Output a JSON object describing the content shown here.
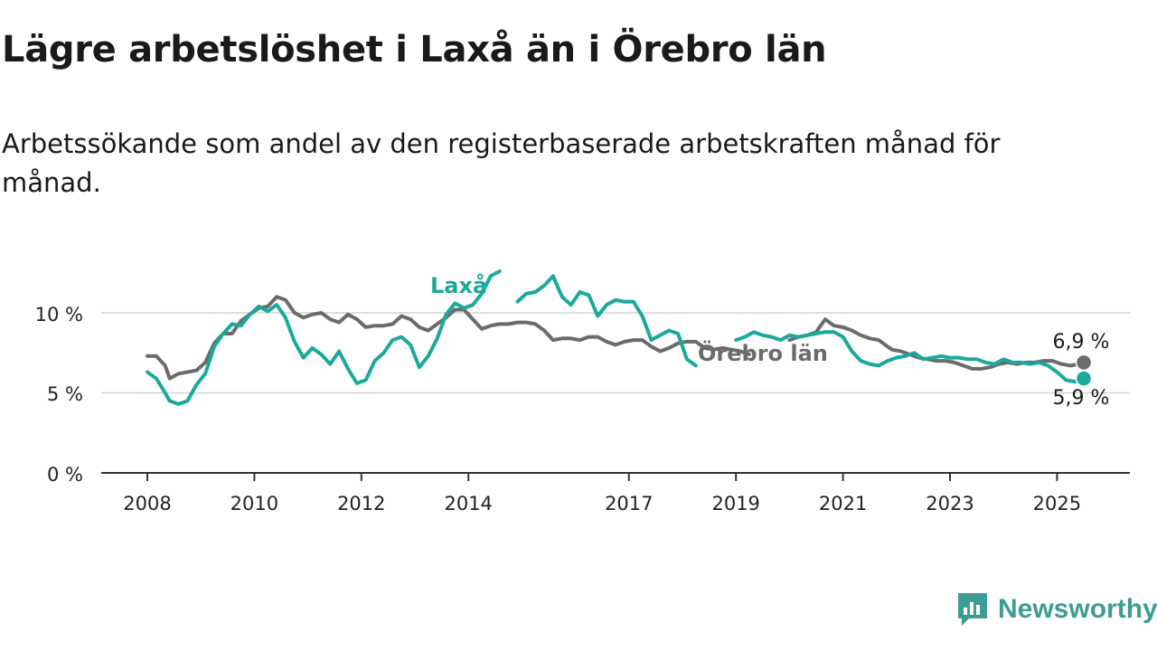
{
  "header": {
    "title": "Lägre arbetslöshet i Laxå än i Örebro län",
    "subtitle": "Arbetssökande som andel av den registerbaserade arbetskraften månad för månad."
  },
  "brand": {
    "name": "Newsworthy",
    "icon": "newsworthy-logo-icon",
    "color": "#3f9c94"
  },
  "chart_data": {
    "type": "line",
    "title": "Lägre arbetslöshet i Laxå än i Örebro län",
    "subtitle": "Arbetssökande som andel av den registerbaserade arbetskraften månad för månad.",
    "xlabel": "",
    "ylabel": "",
    "x_ticks": [
      "2008",
      "2010",
      "2012",
      "2014",
      "2017",
      "2019",
      "2021",
      "2023",
      "2025"
    ],
    "y_ticks": [
      "0 %",
      "5 %",
      "10 %"
    ],
    "ylim": [
      0,
      13
    ],
    "grid": true,
    "legend": "direct labels",
    "series": [
      {
        "name": "Örebro län",
        "color": "#6b6b6e",
        "end_label": "6,9 %",
        "points": [
          [
            "2008-01",
            7.3
          ],
          [
            "2008-03",
            7.3
          ],
          [
            "2008-05",
            6.7
          ],
          [
            "2008-06",
            5.9
          ],
          [
            "2008-08",
            6.2
          ],
          [
            "2008-10",
            6.3
          ],
          [
            "2008-12",
            6.4
          ],
          [
            "2009-02",
            6.9
          ],
          [
            "2009-04",
            8.1
          ],
          [
            "2009-06",
            8.7
          ],
          [
            "2009-08",
            8.7
          ],
          [
            "2009-10",
            9.5
          ],
          [
            "2009-12",
            9.9
          ],
          [
            "2010-02",
            10.3
          ],
          [
            "2010-04",
            10.4
          ],
          [
            "2010-06",
            11.0
          ],
          [
            "2010-08",
            10.8
          ],
          [
            "2010-10",
            10.0
          ],
          [
            "2010-12",
            9.7
          ],
          [
            "2011-02",
            9.9
          ],
          [
            "2011-04",
            10.0
          ],
          [
            "2011-06",
            9.6
          ],
          [
            "2011-08",
            9.4
          ],
          [
            "2011-10",
            9.9
          ],
          [
            "2011-12",
            9.6
          ],
          [
            "2012-02",
            9.1
          ],
          [
            "2012-04",
            9.2
          ],
          [
            "2012-06",
            9.2
          ],
          [
            "2012-08",
            9.3
          ],
          [
            "2012-10",
            9.8
          ],
          [
            "2012-12",
            9.6
          ],
          [
            "2013-02",
            9.1
          ],
          [
            "2013-04",
            8.9
          ],
          [
            "2013-06",
            9.3
          ],
          [
            "2013-08",
            9.7
          ],
          [
            "2013-10",
            10.2
          ],
          [
            "2013-12",
            10.2
          ],
          [
            "2014-02",
            9.6
          ],
          [
            "2014-04",
            9.0
          ],
          [
            "2014-06",
            9.2
          ],
          [
            "2014-08",
            9.3
          ],
          [
            "2014-10",
            9.3
          ],
          [
            "2014-12",
            9.4
          ],
          [
            "2015-02",
            9.4
          ],
          [
            "2015-04",
            9.3
          ],
          [
            "2015-06",
            8.9
          ],
          [
            "2015-08",
            8.3
          ],
          [
            "2015-10",
            8.4
          ],
          [
            "2015-12",
            8.4
          ],
          [
            "2016-02",
            8.3
          ],
          [
            "2016-04",
            8.5
          ],
          [
            "2016-06",
            8.5
          ],
          [
            "2016-08",
            8.2
          ],
          [
            "2016-10",
            8.0
          ],
          [
            "2016-12",
            8.2
          ],
          [
            "2017-02",
            8.3
          ],
          [
            "2017-04",
            8.3
          ],
          [
            "2017-06",
            7.9
          ],
          [
            "2017-08",
            7.6
          ],
          [
            "2017-10",
            7.8
          ],
          [
            "2017-12",
            8.1
          ],
          [
            "2018-02",
            8.2
          ],
          [
            "2018-04",
            8.2
          ],
          [
            "2018-06",
            7.8
          ],
          [
            "2018-08",
            7.7
          ],
          [
            "2018-10",
            7.8
          ],
          [
            "2018-12",
            7.7
          ],
          [
            "2019-02",
            7.6
          ],
          [
            "2019-04",
            7.4
          ]
        ],
        "points_2": [
          [
            "2020-01",
            8.3
          ],
          [
            "2020-03",
            8.5
          ],
          [
            "2020-05",
            8.6
          ],
          [
            "2020-07",
            8.8
          ],
          [
            "2020-09",
            9.6
          ],
          [
            "2020-11",
            9.2
          ],
          [
            "2021-01",
            9.1
          ],
          [
            "2021-03",
            8.9
          ],
          [
            "2021-05",
            8.6
          ],
          [
            "2021-07",
            8.4
          ],
          [
            "2021-09",
            8.3
          ],
          [
            "2021-11",
            7.9
          ],
          [
            "2021-12",
            7.7
          ],
          [
            "2022-02",
            7.6
          ],
          [
            "2022-04",
            7.4
          ],
          [
            "2022-06",
            7.2
          ],
          [
            "2022-08",
            7.1
          ],
          [
            "2022-10",
            7.0
          ],
          [
            "2022-12",
            7.0
          ],
          [
            "2023-02",
            6.9
          ],
          [
            "2023-04",
            6.7
          ],
          [
            "2023-06",
            6.5
          ],
          [
            "2023-08",
            6.5
          ],
          [
            "2023-10",
            6.6
          ],
          [
            "2023-12",
            6.8
          ],
          [
            "2024-02",
            6.9
          ],
          [
            "2024-04",
            6.8
          ],
          [
            "2024-06",
            6.9
          ],
          [
            "2024-08",
            6.9
          ],
          [
            "2024-10",
            7.0
          ],
          [
            "2024-12",
            7.0
          ],
          [
            "2025-02",
            6.8
          ],
          [
            "2025-04",
            6.7
          ],
          [
            "2025-06",
            6.8
          ],
          [
            "2025-07",
            6.9
          ]
        ]
      },
      {
        "name": "Laxå",
        "color": "#1ba99c",
        "end_label": "5,9 %",
        "points": [
          [
            "2008-01",
            6.3
          ],
          [
            "2008-03",
            5.9
          ],
          [
            "2008-05",
            5.0
          ],
          [
            "2008-06",
            4.5
          ],
          [
            "2008-08",
            4.3
          ],
          [
            "2008-10",
            4.5
          ],
          [
            "2008-12",
            5.5
          ],
          [
            "2009-02",
            6.2
          ],
          [
            "2009-04",
            7.9
          ],
          [
            "2009-06",
            8.7
          ],
          [
            "2009-08",
            9.3
          ],
          [
            "2009-10",
            9.2
          ],
          [
            "2009-12",
            9.9
          ],
          [
            "2010-02",
            10.4
          ],
          [
            "2010-04",
            10.1
          ],
          [
            "2010-06",
            10.5
          ],
          [
            "2010-08",
            9.7
          ],
          [
            "2010-10",
            8.2
          ],
          [
            "2010-12",
            7.2
          ],
          [
            "2011-02",
            7.8
          ],
          [
            "2011-04",
            7.4
          ],
          [
            "2011-06",
            6.8
          ],
          [
            "2011-08",
            7.6
          ],
          [
            "2011-10",
            6.5
          ],
          [
            "2011-12",
            5.6
          ],
          [
            "2012-02",
            5.8
          ],
          [
            "2012-04",
            7.0
          ],
          [
            "2012-06",
            7.5
          ],
          [
            "2012-08",
            8.3
          ],
          [
            "2012-10",
            8.5
          ],
          [
            "2012-12",
            8.0
          ],
          [
            "2013-02",
            6.6
          ],
          [
            "2013-04",
            7.3
          ],
          [
            "2013-06",
            8.4
          ],
          [
            "2013-08",
            9.9
          ],
          [
            "2013-10",
            10.6
          ],
          [
            "2013-12",
            10.3
          ],
          [
            "2014-02",
            10.5
          ],
          [
            "2014-04",
            11.2
          ],
          [
            "2014-06",
            12.3
          ],
          [
            "2014-08",
            12.6
          ]
        ],
        "points_2": [
          [
            "2014-12",
            10.7
          ],
          [
            "2015-02",
            11.2
          ],
          [
            "2015-04",
            11.3
          ],
          [
            "2015-06",
            11.7
          ],
          [
            "2015-08",
            12.3
          ],
          [
            "2015-10",
            11.0
          ],
          [
            "2015-12",
            10.5
          ],
          [
            "2016-02",
            11.3
          ],
          [
            "2016-04",
            11.1
          ],
          [
            "2016-06",
            9.8
          ],
          [
            "2016-08",
            10.5
          ],
          [
            "2016-10",
            10.8
          ],
          [
            "2016-12",
            10.7
          ],
          [
            "2017-02",
            10.7
          ],
          [
            "2017-04",
            9.8
          ],
          [
            "2017-06",
            8.3
          ],
          [
            "2017-08",
            8.6
          ],
          [
            "2017-10",
            8.9
          ],
          [
            "2017-12",
            8.7
          ],
          [
            "2018-02",
            7.1
          ],
          [
            "2018-04",
            6.7
          ]
        ],
        "points_3": [
          [
            "2019-01",
            8.3
          ],
          [
            "2019-03",
            8.5
          ],
          [
            "2019-05",
            8.8
          ],
          [
            "2019-07",
            8.6
          ],
          [
            "2019-09",
            8.5
          ],
          [
            "2019-11",
            8.3
          ],
          [
            "2020-01",
            8.6
          ],
          [
            "2020-03",
            8.5
          ],
          [
            "2020-05",
            8.6
          ],
          [
            "2020-07",
            8.7
          ],
          [
            "2020-09",
            8.8
          ],
          [
            "2020-11",
            8.8
          ],
          [
            "2021-01",
            8.5
          ],
          [
            "2021-03",
            7.6
          ],
          [
            "2021-05",
            7.0
          ],
          [
            "2021-07",
            6.8
          ],
          [
            "2021-09",
            6.7
          ],
          [
            "2021-11",
            7.0
          ],
          [
            "2022-01",
            7.2
          ],
          [
            "2022-03",
            7.3
          ],
          [
            "2022-05",
            7.5
          ],
          [
            "2022-07",
            7.1
          ],
          [
            "2022-09",
            7.2
          ],
          [
            "2022-11",
            7.3
          ],
          [
            "2023-01",
            7.2
          ],
          [
            "2023-03",
            7.2
          ],
          [
            "2023-05",
            7.1
          ],
          [
            "2023-07",
            7.1
          ],
          [
            "2023-09",
            6.9
          ],
          [
            "2023-11",
            6.8
          ],
          [
            "2024-01",
            7.1
          ],
          [
            "2024-03",
            6.9
          ],
          [
            "2024-05",
            6.9
          ],
          [
            "2024-07",
            6.8
          ],
          [
            "2024-09",
            6.9
          ],
          [
            "2024-11",
            6.7
          ],
          [
            "2025-01",
            6.3
          ],
          [
            "2025-03",
            5.8
          ],
          [
            "2025-05",
            5.7
          ],
          [
            "2025-07",
            5.9
          ]
        ]
      }
    ]
  }
}
